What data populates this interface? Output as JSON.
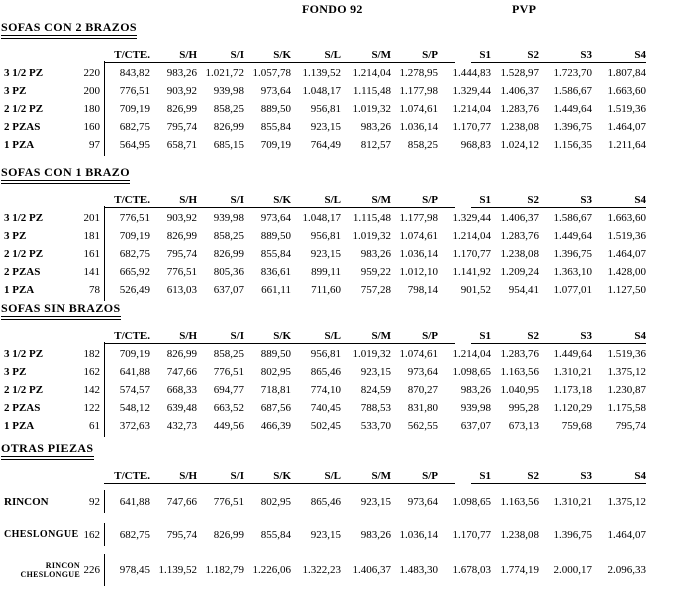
{
  "page": {
    "background_color": "#ffffff",
    "text_color": "#000000",
    "group_headers": {
      "fondo": "FONDO 92",
      "pvp": "PVP"
    },
    "columns": [
      "T/CTE.",
      "S/H",
      "S/I",
      "S/K",
      "S/L",
      "S/M",
      "S/P",
      "S1",
      "S2",
      "S3",
      "S4"
    ],
    "sections": [
      {
        "title": "SOFAS CON 2 BRAZOS",
        "rows": [
          {
            "label": "3 1/2 PZ",
            "size": "220",
            "values": [
              "843,82",
              "983,26",
              "1.021,72",
              "1.057,78",
              "1.139,52",
              "1.214,04",
              "1.278,95",
              "1.444,83",
              "1.528,97",
              "1.723,70",
              "1.807,84"
            ]
          },
          {
            "label": "3 PZ",
            "size": "200",
            "values": [
              "776,51",
              "903,92",
              "939,98",
              "973,64",
              "1.048,17",
              "1.115,48",
              "1.177,98",
              "1.329,44",
              "1.406,37",
              "1.586,67",
              "1.663,60"
            ]
          },
          {
            "label": "2 1/2 PZ",
            "size": "180",
            "values": [
              "709,19",
              "826,99",
              "858,25",
              "889,50",
              "956,81",
              "1.019,32",
              "1.074,61",
              "1.214,04",
              "1.283,76",
              "1.449,64",
              "1.519,36"
            ]
          },
          {
            "label": "2 PZAS",
            "size": "160",
            "values": [
              "682,75",
              "795,74",
              "826,99",
              "855,84",
              "923,15",
              "983,26",
              "1.036,14",
              "1.170,77",
              "1.238,08",
              "1.396,75",
              "1.464,07"
            ]
          },
          {
            "label": "1 PZA",
            "size": "97",
            "values": [
              "564,95",
              "658,71",
              "685,15",
              "709,19",
              "764,49",
              "812,57",
              "858,25",
              "968,83",
              "1.024,12",
              "1.156,35",
              "1.211,64"
            ]
          }
        ]
      },
      {
        "title": "SOFAS CON 1 BRAZO",
        "rows": [
          {
            "label": "3 1/2 PZ",
            "size": "201",
            "values": [
              "776,51",
              "903,92",
              "939,98",
              "973,64",
              "1.048,17",
              "1.115,48",
              "1.177,98",
              "1.329,44",
              "1.406,37",
              "1.586,67",
              "1.663,60"
            ]
          },
          {
            "label": "3 PZ",
            "size": "181",
            "values": [
              "709,19",
              "826,99",
              "858,25",
              "889,50",
              "956,81",
              "1.019,32",
              "1.074,61",
              "1.214,04",
              "1.283,76",
              "1.449,64",
              "1.519,36"
            ]
          },
          {
            "label": "2 1/2 PZ",
            "size": "161",
            "values": [
              "682,75",
              "795,74",
              "826,99",
              "855,84",
              "923,15",
              "983,26",
              "1.036,14",
              "1.170,77",
              "1.238,08",
              "1.396,75",
              "1.464,07"
            ]
          },
          {
            "label": "2 PZAS",
            "size": "141",
            "values": [
              "665,92",
              "776,51",
              "805,36",
              "836,61",
              "899,11",
              "959,22",
              "1.012,10",
              "1.141,92",
              "1.209,24",
              "1.363,10",
              "1.428,00"
            ]
          },
          {
            "label": "1 PZA",
            "size": "78",
            "values": [
              "526,49",
              "613,03",
              "637,07",
              "661,11",
              "711,60",
              "757,28",
              "798,14",
              "901,52",
              "954,41",
              "1.077,01",
              "1.127,50"
            ]
          }
        ]
      },
      {
        "title": "SOFAS SIN BRAZOS",
        "rows": [
          {
            "label": "3 1/2 PZ",
            "size": "182",
            "values": [
              "709,19",
              "826,99",
              "858,25",
              "889,50",
              "956,81",
              "1.019,32",
              "1.074,61",
              "1.214,04",
              "1.283,76",
              "1.449,64",
              "1.519,36"
            ]
          },
          {
            "label": "3 PZ",
            "size": "162",
            "values": [
              "641,88",
              "747,66",
              "776,51",
              "802,95",
              "865,46",
              "923,15",
              "973,64",
              "1.098,65",
              "1.163,56",
              "1.310,21",
              "1.375,12"
            ]
          },
          {
            "label": "2 1/2 PZ",
            "size": "142",
            "values": [
              "574,57",
              "668,33",
              "694,77",
              "718,81",
              "774,10",
              "824,59",
              "870,27",
              "983,26",
              "1.040,95",
              "1.173,18",
              "1.230,87"
            ]
          },
          {
            "label": "2 PZAS",
            "size": "122",
            "values": [
              "548,12",
              "639,48",
              "663,52",
              "687,56",
              "740,45",
              "788,53",
              "831,80",
              "939,98",
              "995,28",
              "1.120,29",
              "1.175,58"
            ]
          },
          {
            "label": "1 PZA",
            "size": "61",
            "values": [
              "372,63",
              "432,73",
              "449,56",
              "466,39",
              "502,45",
              "533,70",
              "562,55",
              "637,07",
              "673,13",
              "759,68",
              "795,74"
            ]
          }
        ]
      },
      {
        "title": "OTRAS PIEZAS",
        "rows": [
          {
            "label": "RINCON",
            "size": "92",
            "values": [
              "641,88",
              "747,66",
              "776,51",
              "802,95",
              "865,46",
              "923,15",
              "973,64",
              "1.098,65",
              "1.163,56",
              "1.310,21",
              "1.375,12"
            ]
          },
          {
            "label": "CHESLONGUE",
            "size": "162",
            "values": [
              "682,75",
              "795,74",
              "826,99",
              "855,84",
              "923,15",
              "983,26",
              "1.036,14",
              "1.170,77",
              "1.238,08",
              "1.396,75",
              "1.464,07"
            ]
          },
          {
            "label": "RINCON CHESLONGUE",
            "label_lines": [
              "RINCON",
              "CHESLONGUE"
            ],
            "size": "226",
            "values": [
              "978,45",
              "1.139,52",
              "1.182,79",
              "1.226,06",
              "1.322,23",
              "1.406,37",
              "1.483,30",
              "1.678,03",
              "1.774,19",
              "2.000,17",
              "2.096,33"
            ]
          }
        ]
      }
    ]
  }
}
